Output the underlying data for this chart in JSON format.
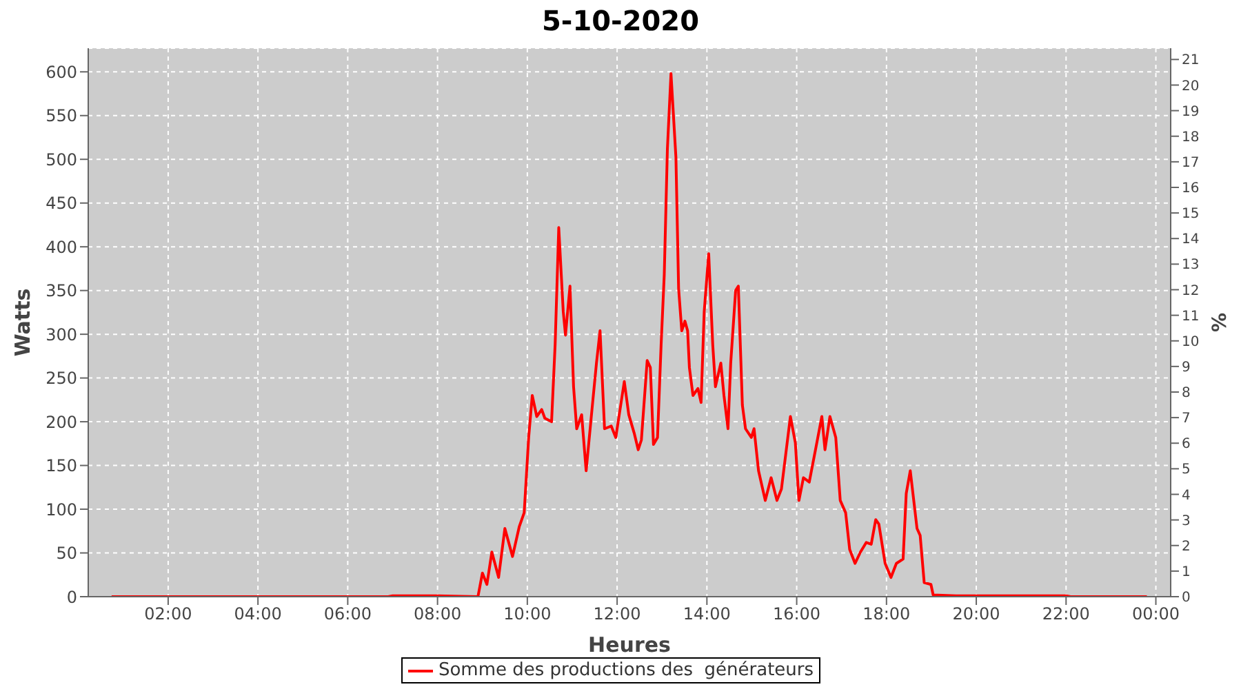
{
  "chart_data": {
    "type": "line",
    "title": "5-10-2020",
    "xlabel": "Heures",
    "ylabel": "Watts",
    "y2label": "%",
    "xlim": [
      0.22,
      24.33
    ],
    "xticks": [
      {
        "value": 2,
        "label": "02:00"
      },
      {
        "value": 4,
        "label": "04:00"
      },
      {
        "value": 6,
        "label": "06:00"
      },
      {
        "value": 8,
        "label": "08:00"
      },
      {
        "value": 10,
        "label": "10:00"
      },
      {
        "value": 12,
        "label": "12:00"
      },
      {
        "value": 14,
        "label": "14:00"
      },
      {
        "value": 16,
        "label": "16:00"
      },
      {
        "value": 18,
        "label": "18:00"
      },
      {
        "value": 20,
        "label": "20:00"
      },
      {
        "value": 22,
        "label": "22:00"
      },
      {
        "value": 24,
        "label": "00:00"
      }
    ],
    "ylim": [
      0,
      627
    ],
    "yticks": [
      0,
      50,
      100,
      150,
      200,
      250,
      300,
      350,
      400,
      450,
      500,
      550,
      600
    ],
    "y2lim": [
      0,
      21.44
    ],
    "y2ticks": [
      0,
      1,
      2,
      3,
      4,
      5,
      6,
      7,
      8,
      9,
      10,
      11,
      12,
      13,
      14,
      15,
      16,
      17,
      18,
      19,
      20,
      21
    ],
    "grid": true,
    "legend": "bottom",
    "line_style": "solid",
    "series": [
      {
        "name": "Somme des productions des  générateurs",
        "color": "#ff0000",
        "x": [
          0.74,
          6.9,
          7.0,
          8.0,
          8.9,
          9.0,
          9.1,
          9.21,
          9.36,
          9.5,
          9.67,
          9.82,
          9.93,
          10.03,
          10.11,
          10.21,
          10.32,
          10.39,
          10.54,
          10.62,
          10.7,
          10.8,
          10.85,
          10.95,
          11.03,
          11.1,
          11.21,
          11.31,
          11.44,
          11.54,
          11.62,
          11.72,
          11.87,
          11.97,
          12.16,
          12.26,
          12.38,
          12.47,
          12.54,
          12.67,
          12.74,
          12.81,
          12.9,
          12.98,
          13.05,
          13.12,
          13.2,
          13.31,
          13.37,
          13.44,
          13.51,
          13.57,
          13.61,
          13.69,
          13.8,
          13.87,
          13.94,
          14.04,
          14.13,
          14.19,
          14.31,
          14.38,
          14.47,
          14.53,
          14.64,
          14.7,
          14.79,
          14.86,
          14.99,
          15.05,
          15.15,
          15.3,
          15.43,
          15.56,
          15.66,
          15.86,
          15.97,
          16.05,
          16.15,
          16.28,
          16.43,
          16.56,
          16.63,
          16.74,
          16.87,
          16.97,
          17.09,
          17.18,
          17.3,
          17.42,
          17.55,
          17.66,
          17.76,
          17.83,
          17.97,
          18.1,
          18.22,
          18.37,
          18.44,
          18.53,
          18.68,
          18.75,
          18.84,
          18.99,
          19.04,
          19.55,
          22.0,
          22.1,
          23.8
        ],
        "values": [
          0,
          0,
          1,
          1,
          0,
          27,
          14,
          51,
          22,
          78,
          46,
          80,
          96,
          182,
          230,
          206,
          214,
          204,
          200,
          289,
          422,
          326,
          299,
          355,
          240,
          192,
          208,
          144,
          214,
          267,
          304,
          192,
          195,
          182,
          246,
          208,
          187,
          168,
          179,
          270,
          262,
          174,
          182,
          288,
          368,
          512,
          598,
          502,
          352,
          304,
          315,
          304,
          262,
          230,
          238,
          222,
          326,
          392,
          288,
          240,
          267,
          230,
          192,
          267,
          350,
          355,
          219,
          192,
          182,
          192,
          144,
          110,
          136,
          110,
          123,
          206,
          176,
          110,
          136,
          131,
          171,
          206,
          168,
          206,
          182,
          110,
          96,
          54,
          38,
          51,
          62,
          60,
          88,
          83,
          38,
          22,
          38,
          43,
          118,
          144,
          78,
          70,
          16,
          14,
          2,
          1,
          1,
          0,
          0
        ]
      }
    ]
  }
}
